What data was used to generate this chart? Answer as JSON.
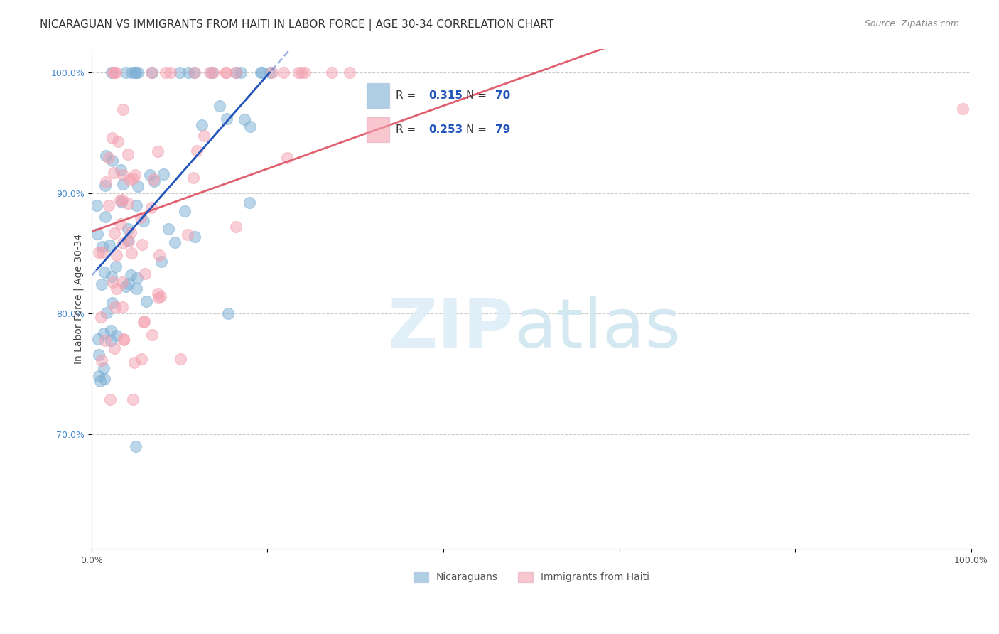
{
  "title": "NICARAGUAN VS IMMIGRANTS FROM HAITI IN LABOR FORCE | AGE 30-34 CORRELATION CHART",
  "source": "Source: ZipAtlas.com",
  "ylabel": "In Labor Force | Age 30-34",
  "xlim": [
    0.0,
    1.0
  ],
  "ylim": [
    0.605,
    1.02
  ],
  "blue_color": "#7BAFD4",
  "pink_color": "#F4A0B0",
  "blue_line_color": "#2255BB",
  "pink_line_color": "#E06070",
  "legend_R_blue": "0.315",
  "legend_N_blue": "70",
  "legend_R_pink": "0.253",
  "legend_N_pink": "79",
  "grid_color": "#CCCCCC",
  "background_color": "#FFFFFF",
  "title_fontsize": 11,
  "axis_label_fontsize": 10,
  "tick_fontsize": 9
}
